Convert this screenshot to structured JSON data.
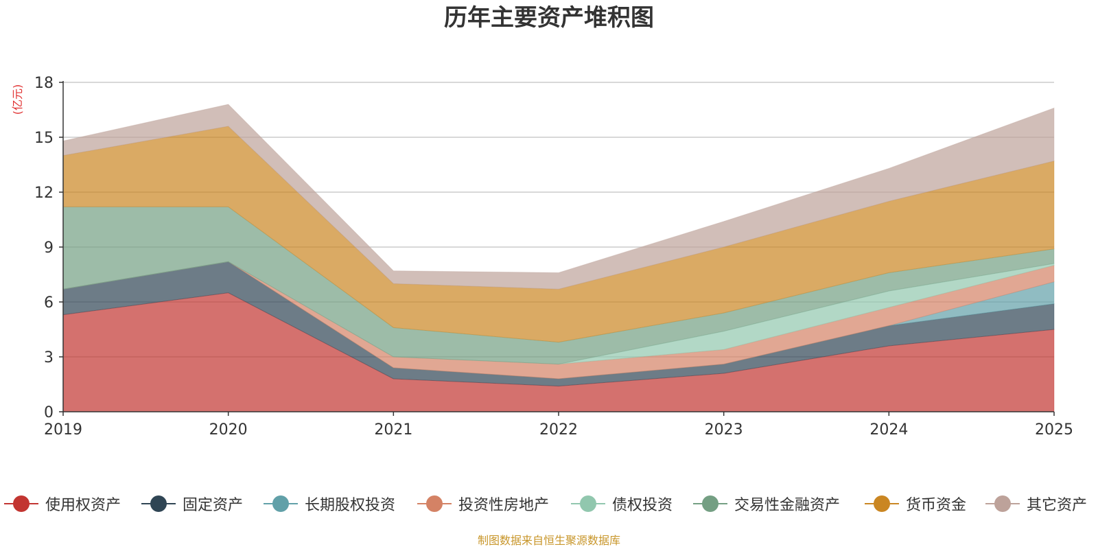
{
  "chart_data": {
    "type": "area",
    "stacked": true,
    "title": "历年主要资产堆积图",
    "ylabel": "(亿元)",
    "xlabel": "",
    "x": [
      "2019",
      "2020",
      "2021",
      "2022",
      "2023",
      "2024",
      "2025"
    ],
    "ylim": [
      0,
      18
    ],
    "yticks": [
      0,
      3,
      6,
      9,
      12,
      15,
      18
    ],
    "grid": true,
    "legend_position": "bottom",
    "series": [
      {
        "name": "使用权资产",
        "color": "#c23531",
        "values": [
          5.3,
          6.5,
          1.8,
          1.4,
          2.1,
          3.6,
          4.5
        ]
      },
      {
        "name": "固定资产",
        "color": "#2f4554",
        "values": [
          1.4,
          1.7,
          0.6,
          0.4,
          0.5,
          1.1,
          1.4
        ]
      },
      {
        "name": "长期股权投资",
        "color": "#61a0a8",
        "values": [
          0,
          0,
          0,
          0,
          0,
          0,
          1.2
        ]
      },
      {
        "name": "投资性房地产",
        "color": "#d48265",
        "values": [
          0,
          0,
          0.6,
          0.8,
          0.8,
          1.0,
          0.9
        ]
      },
      {
        "name": "债权投资",
        "color": "#91c7ae",
        "values": [
          0,
          0,
          0,
          0,
          1.0,
          0.9,
          0.1
        ]
      },
      {
        "name": "交易性金融资产",
        "color": "#749f83",
        "values": [
          4.5,
          3.0,
          1.6,
          1.2,
          1.0,
          1.0,
          0.8
        ]
      },
      {
        "name": "货币资金",
        "color": "#ca8622",
        "values": [
          2.8,
          4.4,
          2.4,
          2.9,
          3.6,
          3.9,
          4.8
        ]
      },
      {
        "name": "其它资产",
        "color": "#bda29a",
        "values": [
          0.8,
          1.2,
          0.7,
          0.9,
          1.4,
          1.8,
          2.9
        ]
      }
    ]
  },
  "footer": {
    "text": "制图数据来自恒生聚源数据库",
    "color": "#c8962a"
  },
  "ylabel_color": "#e03030"
}
